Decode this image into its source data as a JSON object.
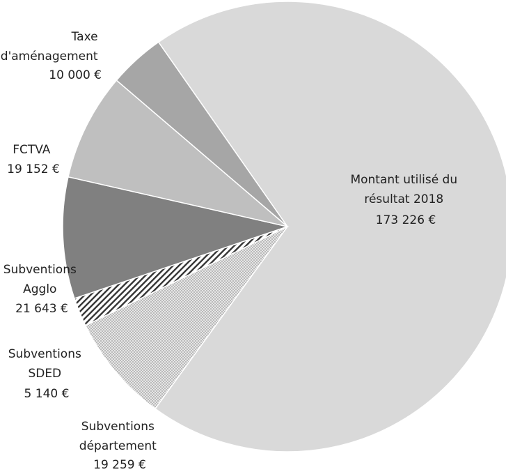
{
  "chart_data": {
    "type": "pie",
    "title": "",
    "slices": [
      {
        "name_lines": [
          "Montant utilisé du",
          "résultat 2018"
        ],
        "value": 173226,
        "value_label": "173 226 €",
        "color": "#d9d9d9",
        "pattern": "solid"
      },
      {
        "name_lines": [
          "Subventions",
          "département"
        ],
        "value": 19259,
        "value_label": "19 259 €",
        "color": "#d9d9d9",
        "pattern": "dots"
      },
      {
        "name_lines": [
          "Subventions",
          "SDED"
        ],
        "value": 5140,
        "value_label": "5 140 €",
        "color": "#ffffff",
        "pattern": "diagonal-stripes"
      },
      {
        "name_lines": [
          "Subventions",
          "Agglo"
        ],
        "value": 21643,
        "value_label": "21 643 €",
        "color": "#808080",
        "pattern": "solid"
      },
      {
        "name_lines": [
          "FCTVA"
        ],
        "value": 19152,
        "value_label": "19 152 €",
        "color": "#bfbfbf",
        "pattern": "solid"
      },
      {
        "name_lines": [
          "Taxe",
          "d'aménagement"
        ],
        "value": 10000,
        "value_label": "10 000 €",
        "color": "#a6a6a6",
        "pattern": "solid"
      }
    ]
  }
}
